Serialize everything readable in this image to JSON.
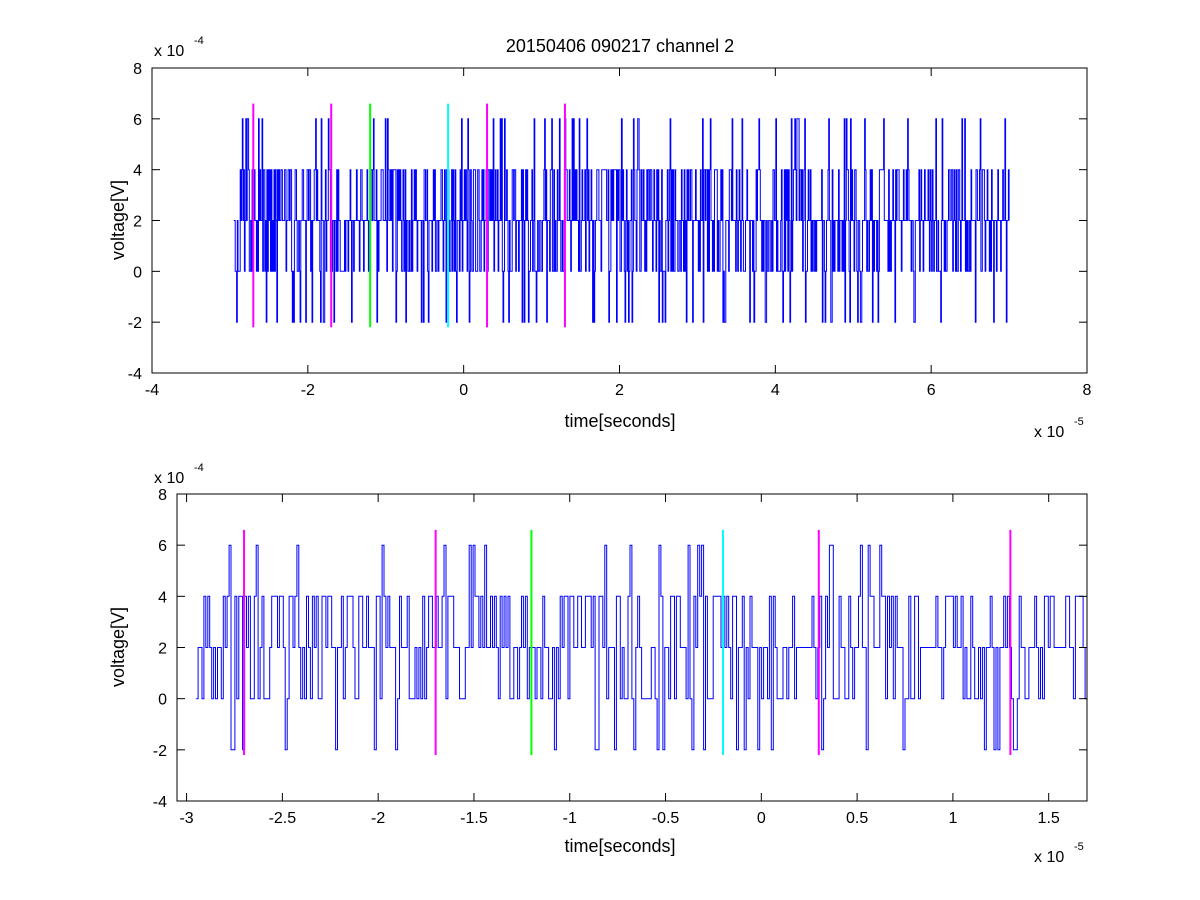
{
  "figure": {
    "title": "20150406 090217 channel 2"
  },
  "chart_data": [
    {
      "type": "line",
      "title": "20150406 090217 channel 2",
      "xlabel": "time[seconds]",
      "ylabel": "voltage[V]",
      "x_exponent_base": "x 10",
      "x_exponent": "-5",
      "y_exponent_base": "x 10",
      "y_exponent": "-4",
      "xlim": [
        -4,
        8
      ],
      "ylim": [
        -4,
        8
      ],
      "xticks": [
        -4,
        -2,
        0,
        2,
        4,
        6,
        8
      ],
      "xtick_labels": [
        "-4",
        "-2",
        "0",
        "2",
        "4",
        "6",
        "8"
      ],
      "yticks": [
        -4,
        -2,
        0,
        2,
        4,
        6,
        8
      ],
      "ytick_labels": [
        "-4",
        "-2",
        "0",
        "2",
        "4",
        "6",
        "8"
      ],
      "grid": false,
      "signal": {
        "color": "#0000ff",
        "x_start": -2.95,
        "x_end": 7.0,
        "levels": [
          -2,
          0,
          2,
          4,
          6
        ],
        "baseline": 2,
        "seed": 12345
      },
      "markers": [
        {
          "x": -2.7,
          "color": "#ff00ff",
          "y_range": [
            -2.2,
            6.6
          ]
        },
        {
          "x": -1.7,
          "color": "#ff00ff",
          "y_range": [
            -2.2,
            6.6
          ]
        },
        {
          "x": -1.2,
          "color": "#00ff00",
          "y_range": [
            -2.2,
            6.6
          ]
        },
        {
          "x": -0.2,
          "color": "#00ffff",
          "y_range": [
            -2.2,
            6.6
          ]
        },
        {
          "x": 0.3,
          "color": "#ff00ff",
          "y_range": [
            -2.2,
            6.6
          ]
        },
        {
          "x": 1.3,
          "color": "#ff00ff",
          "y_range": [
            -2.2,
            6.6
          ]
        }
      ]
    },
    {
      "type": "line",
      "title": "",
      "xlabel": "time[seconds]",
      "ylabel": "voltage[V]",
      "x_exponent_base": "x 10",
      "x_exponent": "-5",
      "y_exponent_base": "x 10",
      "y_exponent": "-4",
      "xlim": [
        -3.05,
        1.7
      ],
      "ylim": [
        -4,
        8
      ],
      "xticks": [
        -3,
        -2.5,
        -2,
        -1.5,
        -1,
        -0.5,
        0,
        0.5,
        1,
        1.5
      ],
      "xtick_labels": [
        "-3",
        "-2.5",
        "-2",
        "-1.5",
        "-1",
        "-0.5",
        "0",
        "0.5",
        "1",
        "1.5"
      ],
      "yticks": [
        -4,
        -2,
        0,
        2,
        4,
        6,
        8
      ],
      "ytick_labels": [
        "-4",
        "-2",
        "0",
        "2",
        "4",
        "6",
        "8"
      ],
      "grid": false,
      "signal": {
        "color": "#0000ff",
        "x_start": -2.95,
        "x_end": 1.7,
        "levels": [
          -2,
          0,
          2,
          4,
          6
        ],
        "baseline": 2,
        "seed": 777
      },
      "markers": [
        {
          "x": -2.7,
          "color": "#ff00ff",
          "y_range": [
            -2.2,
            6.6
          ]
        },
        {
          "x": -1.7,
          "color": "#ff00ff",
          "y_range": [
            -2.2,
            6.6
          ]
        },
        {
          "x": -1.2,
          "color": "#00ff00",
          "y_range": [
            -2.2,
            6.6
          ]
        },
        {
          "x": -0.2,
          "color": "#00ffff",
          "y_range": [
            -2.2,
            6.6
          ]
        },
        {
          "x": 0.3,
          "color": "#ff00ff",
          "y_range": [
            -2.2,
            6.6
          ]
        },
        {
          "x": 1.3,
          "color": "#ff00ff",
          "y_range": [
            -2.2,
            6.6
          ]
        }
      ]
    }
  ]
}
